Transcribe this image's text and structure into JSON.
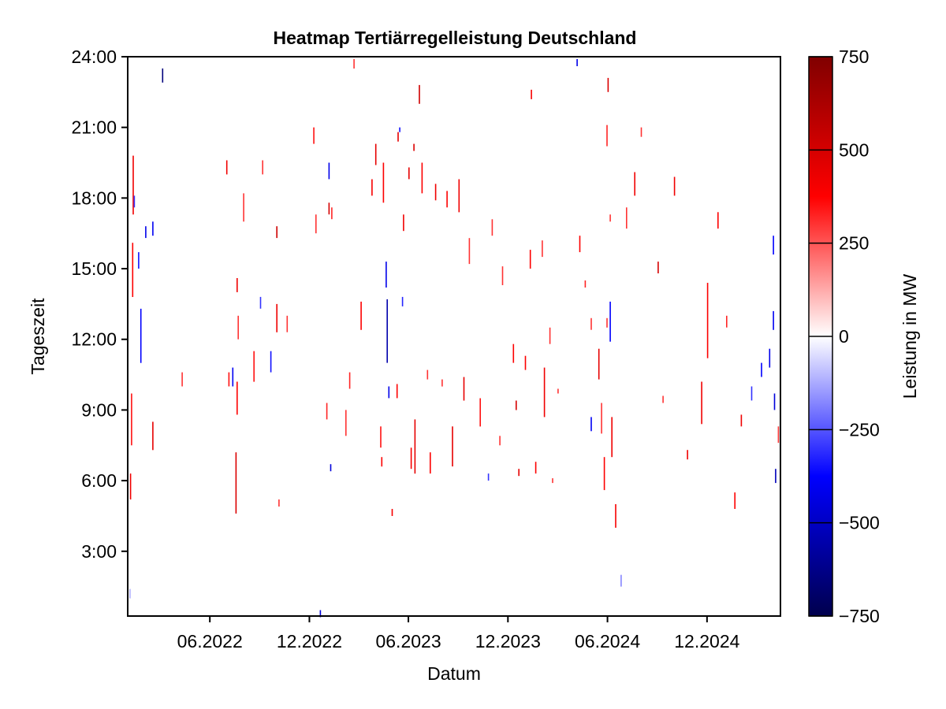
{
  "chart_data": {
    "type": "heatmap",
    "title": "Heatmap Tertiärregelleistung Deutschland",
    "xlabel": "Datum",
    "ylabel": "Tageszeit",
    "colorbar_label": "Leistung in MW",
    "xlim": [
      "2022-01-01",
      "2025-04-15"
    ],
    "ylim": [
      0.25,
      24
    ],
    "x_ticks": [
      {
        "date": "2022-06-01",
        "label": "06.2022"
      },
      {
        "date": "2022-12-01",
        "label": "12.2022"
      },
      {
        "date": "2023-06-01",
        "label": "06.2023"
      },
      {
        "date": "2023-12-01",
        "label": "12.2023"
      },
      {
        "date": "2024-06-01",
        "label": "06.2024"
      },
      {
        "date": "2024-12-01",
        "label": "12.2024"
      }
    ],
    "y_ticks": [
      {
        "hour": 3,
        "label": "3:00"
      },
      {
        "hour": 6,
        "label": "6:00"
      },
      {
        "hour": 9,
        "label": "9:00"
      },
      {
        "hour": 12,
        "label": "12:00"
      },
      {
        "hour": 15,
        "label": "15:00"
      },
      {
        "hour": 18,
        "label": "18:00"
      },
      {
        "hour": 21,
        "label": "21:00"
      },
      {
        "hour": 24,
        "label": "24:00"
      }
    ],
    "colorbar": {
      "min": -750,
      "max": 750,
      "ticks": [
        {
          "value": 750,
          "label": "750"
        },
        {
          "value": 500,
          "label": "500"
        },
        {
          "value": 250,
          "label": "250"
        },
        {
          "value": 0,
          "label": "0"
        },
        {
          "value": -250,
          "label": "−250"
        },
        {
          "value": -500,
          "label": "−500"
        },
        {
          "value": -750,
          "label": "−750"
        }
      ],
      "colormap": [
        "#00004d",
        "#0000ff",
        "#ffffff",
        "#ff0000",
        "#800000"
      ]
    },
    "cells_note_units": "date, hour range [from,to], value MW",
    "cells": [
      [
        "2022-01-04",
        1.0,
        1.4,
        -120
      ],
      [
        "2022-01-05",
        5.2,
        6.3,
        420
      ],
      [
        "2022-01-07",
        7.5,
        9.7,
        350
      ],
      [
        "2022-01-09",
        13.8,
        16.1,
        380
      ],
      [
        "2022-01-10",
        17.3,
        19.8,
        420
      ],
      [
        "2022-01-12",
        17.6,
        18.1,
        -300
      ],
      [
        "2022-01-20",
        15.0,
        15.7,
        -350
      ],
      [
        "2022-01-24",
        11.0,
        13.3,
        -380
      ],
      [
        "2022-02-02",
        16.3,
        16.8,
        -420
      ],
      [
        "2022-02-15",
        16.4,
        17.0,
        -400
      ],
      [
        "2022-02-15",
        7.3,
        8.5,
        450
      ],
      [
        "2022-03-05",
        22.9,
        23.5,
        -650
      ],
      [
        "2022-04-10",
        10.0,
        10.6,
        300
      ],
      [
        "2022-07-01",
        19.0,
        19.6,
        420
      ],
      [
        "2022-07-05",
        10.0,
        10.6,
        350
      ],
      [
        "2022-07-12",
        10.0,
        10.8,
        -400
      ],
      [
        "2022-07-18",
        4.6,
        7.2,
        480
      ],
      [
        "2022-07-20",
        8.8,
        10.2,
        380
      ],
      [
        "2022-07-20",
        14.0,
        14.6,
        420
      ],
      [
        "2022-07-22",
        12.0,
        13.0,
        300
      ],
      [
        "2022-08-01",
        17.0,
        18.2,
        300
      ],
      [
        "2022-08-20",
        10.2,
        11.5,
        350
      ],
      [
        "2022-09-01",
        13.3,
        13.8,
        -300
      ],
      [
        "2022-09-05",
        19.0,
        19.6,
        300
      ],
      [
        "2022-09-20",
        10.6,
        11.5,
        -350
      ],
      [
        "2022-10-01",
        12.3,
        13.5,
        420
      ],
      [
        "2022-10-01",
        16.3,
        16.8,
        520
      ],
      [
        "2022-10-05",
        4.9,
        5.2,
        300
      ],
      [
        "2022-10-20",
        12.3,
        13.0,
        300
      ],
      [
        "2022-12-08",
        20.3,
        21.0,
        350
      ],
      [
        "2022-12-12",
        16.5,
        17.3,
        300
      ],
      [
        "2022-12-20",
        0.2,
        0.5,
        -450
      ],
      [
        "2023-01-01",
        8.6,
        9.3,
        320
      ],
      [
        "2023-01-05",
        17.3,
        17.8,
        500
      ],
      [
        "2023-01-05",
        18.8,
        19.5,
        -420
      ],
      [
        "2023-01-08",
        6.4,
        6.7,
        -450
      ],
      [
        "2023-01-10",
        17.1,
        17.6,
        320
      ],
      [
        "2023-02-05",
        7.9,
        9.0,
        300
      ],
      [
        "2023-02-12",
        9.9,
        10.6,
        320
      ],
      [
        "2023-02-20",
        23.5,
        23.9,
        300
      ],
      [
        "2023-03-05",
        12.4,
        13.6,
        380
      ],
      [
        "2023-03-25",
        18.1,
        18.8,
        400
      ],
      [
        "2023-04-01",
        19.4,
        20.3,
        450
      ],
      [
        "2023-04-10",
        7.4,
        8.3,
        350
      ],
      [
        "2023-04-12",
        6.6,
        7.0,
        380
      ],
      [
        "2023-04-15",
        17.8,
        19.5,
        380
      ],
      [
        "2023-04-20",
        14.2,
        15.3,
        -420
      ],
      [
        "2023-04-22",
        11.0,
        13.7,
        -550
      ],
      [
        "2023-04-25",
        9.5,
        10.0,
        -420
      ],
      [
        "2023-05-01",
        4.5,
        4.8,
        400
      ],
      [
        "2023-05-10",
        9.5,
        10.1,
        380
      ],
      [
        "2023-05-12",
        20.4,
        20.8,
        450
      ],
      [
        "2023-05-15",
        20.8,
        21.0,
        -350
      ],
      [
        "2023-05-20",
        13.4,
        13.8,
        -320
      ],
      [
        "2023-05-22",
        16.6,
        17.3,
        420
      ],
      [
        "2023-06-01",
        18.8,
        19.3,
        450
      ],
      [
        "2023-06-05",
        6.5,
        7.4,
        400
      ],
      [
        "2023-06-10",
        20.0,
        20.3,
        480
      ],
      [
        "2023-06-12",
        6.3,
        8.6,
        450
      ],
      [
        "2023-06-20",
        22.0,
        22.8,
        520
      ],
      [
        "2023-06-25",
        18.2,
        19.5,
        380
      ],
      [
        "2023-07-05",
        10.3,
        10.7,
        300
      ],
      [
        "2023-07-10",
        6.3,
        7.2,
        380
      ],
      [
        "2023-07-20",
        17.9,
        18.6,
        420
      ],
      [
        "2023-08-01",
        10.0,
        10.3,
        300
      ],
      [
        "2023-08-10",
        17.6,
        18.3,
        380
      ],
      [
        "2023-08-20",
        6.6,
        8.3,
        450
      ],
      [
        "2023-09-01",
        17.4,
        18.8,
        420
      ],
      [
        "2023-09-10",
        9.4,
        10.4,
        450
      ],
      [
        "2023-09-20",
        15.2,
        16.3,
        300
      ],
      [
        "2023-10-10",
        8.3,
        9.5,
        350
      ],
      [
        "2023-10-25",
        6.0,
        6.3,
        -300
      ],
      [
        "2023-11-01",
        16.4,
        17.1,
        300
      ],
      [
        "2023-11-15",
        7.5,
        7.9,
        300
      ],
      [
        "2023-11-20",
        14.3,
        15.1,
        300
      ],
      [
        "2023-12-10",
        11.0,
        11.8,
        380
      ],
      [
        "2023-12-15",
        9.0,
        9.4,
        500
      ],
      [
        "2023-12-20",
        6.2,
        6.5,
        450
      ],
      [
        "2024-01-01",
        10.7,
        11.3,
        380
      ],
      [
        "2024-01-10",
        15.0,
        15.8,
        380
      ],
      [
        "2024-01-12",
        22.2,
        22.6,
        400
      ],
      [
        "2024-01-20",
        6.3,
        6.8,
        380
      ],
      [
        "2024-02-01",
        15.5,
        16.2,
        300
      ],
      [
        "2024-02-05",
        8.7,
        10.8,
        420
      ],
      [
        "2024-02-15",
        11.8,
        12.5,
        300
      ],
      [
        "2024-02-20",
        5.9,
        6.1,
        300
      ],
      [
        "2024-03-01",
        9.7,
        9.9,
        300
      ],
      [
        "2024-04-05",
        23.6,
        23.9,
        -420
      ],
      [
        "2024-04-10",
        15.7,
        16.4,
        380
      ],
      [
        "2024-04-20",
        14.2,
        14.5,
        320
      ],
      [
        "2024-05-01",
        8.1,
        8.7,
        -400
      ],
      [
        "2024-05-01",
        12.4,
        12.9,
        300
      ],
      [
        "2024-05-15",
        10.3,
        11.6,
        450
      ],
      [
        "2024-05-20",
        8.0,
        9.3,
        300
      ],
      [
        "2024-05-25",
        5.6,
        7.0,
        380
      ],
      [
        "2024-05-30",
        12.5,
        12.9,
        300
      ],
      [
        "2024-05-30",
        20.2,
        21.1,
        320
      ],
      [
        "2024-06-01",
        22.5,
        23.1,
        480
      ],
      [
        "2024-06-05",
        11.9,
        13.6,
        -380
      ],
      [
        "2024-06-05",
        17.0,
        17.3,
        300
      ],
      [
        "2024-06-08",
        7.0,
        8.7,
        420
      ],
      [
        "2024-06-15",
        4.0,
        5.0,
        400
      ],
      [
        "2024-06-25",
        1.5,
        2.0,
        -180
      ],
      [
        "2024-07-05",
        16.7,
        17.6,
        300
      ],
      [
        "2024-07-20",
        18.1,
        19.1,
        420
      ],
      [
        "2024-08-01",
        20.6,
        21.0,
        300
      ],
      [
        "2024-09-01",
        14.8,
        15.3,
        500
      ],
      [
        "2024-09-10",
        9.3,
        9.6,
        300
      ],
      [
        "2024-10-01",
        18.1,
        18.9,
        420
      ],
      [
        "2024-10-25",
        6.9,
        7.3,
        420
      ],
      [
        "2024-11-20",
        8.4,
        10.2,
        420
      ],
      [
        "2024-12-01",
        11.2,
        14.4,
        380
      ],
      [
        "2024-12-20",
        16.7,
        17.4,
        380
      ],
      [
        "2025-01-05",
        12.5,
        13.0,
        320
      ],
      [
        "2025-01-20",
        4.8,
        5.5,
        380
      ],
      [
        "2025-02-01",
        8.3,
        8.8,
        420
      ],
      [
        "2025-02-20",
        9.4,
        10.0,
        -300
      ],
      [
        "2025-03-10",
        10.4,
        11.0,
        -380
      ],
      [
        "2025-03-25",
        10.8,
        11.6,
        -420
      ],
      [
        "2025-04-01",
        12.4,
        13.2,
        -400
      ],
      [
        "2025-04-01",
        15.6,
        16.4,
        -380
      ],
      [
        "2025-04-03",
        9.0,
        9.7,
        -450
      ],
      [
        "2025-04-05",
        5.9,
        6.5,
        -520
      ],
      [
        "2025-04-10",
        7.6,
        8.3,
        300
      ]
    ]
  }
}
